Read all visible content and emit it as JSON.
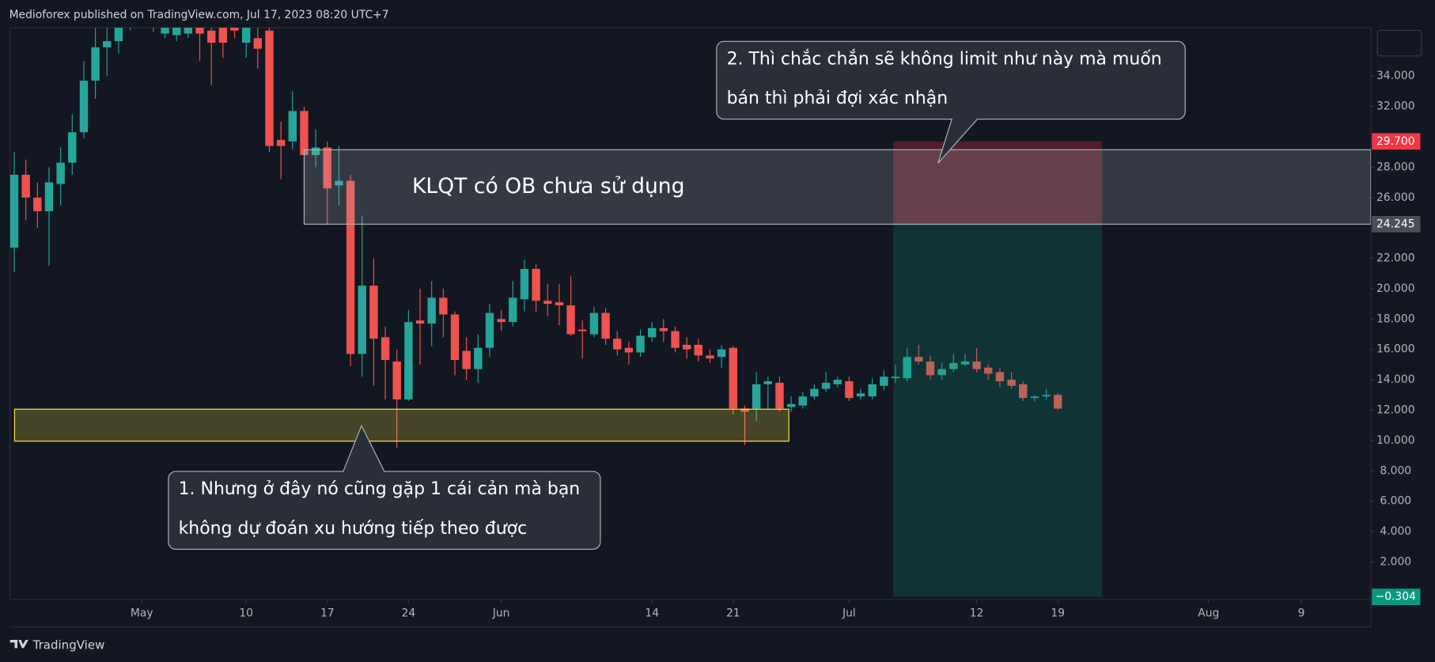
{
  "header": "Medioforex published on TradingView.com, Jul 17, 2023 08:20 UTC+7",
  "footer": "TradingView",
  "chart_data": {
    "type": "candlestick",
    "series": [
      {
        "up_color": "#26a69a",
        "down_color": "#ef5350",
        "open": [
          22.7,
          27.5,
          26.0,
          25.1,
          26.9,
          28.3,
          30.3,
          33.7,
          35.9,
          36.3,
          37.5,
          38.0,
          37.8,
          36.8,
          36.7,
          36.8,
          37.5,
          37.0,
          37.3,
          37.2,
          36.2,
          36.5,
          37.0,
          29.8,
          29.7,
          31.7,
          28.8,
          29.3,
          26.8,
          27.1,
          15.7,
          20.2,
          16.8,
          15.2,
          12.7,
          17.9,
          17.7,
          19.4,
          18.3,
          15.9,
          14.7,
          16.1,
          18.0,
          17.8,
          19.3,
          21.3,
          19.2,
          19.1,
          18.9,
          17.3,
          17.0,
          18.4,
          16.7,
          16.1,
          15.8,
          16.8,
          17.4,
          17.2,
          16.3,
          16.3,
          15.6,
          15.5,
          16.1,
          12.1,
          12.1,
          13.7,
          13.8,
          12.2,
          12.3,
          12.9,
          13.4,
          13.7,
          13.9,
          12.9,
          12.9,
          13.6,
          14.1,
          14.1,
          15.5,
          15.2,
          14.3,
          14.7,
          15.0,
          15.2,
          14.8,
          14.5,
          14.0,
          13.7,
          12.8,
          12.9,
          13.0
        ],
        "high": [
          29.0,
          28.5,
          27.0,
          28.0,
          29.3,
          31.5,
          35.0,
          37.2,
          37.2,
          37.2,
          38.5,
          39.0,
          38.5,
          38.0,
          37.8,
          38.0,
          38.0,
          37.5,
          37.8,
          37.5,
          37.8,
          37.5,
          37.5,
          31.0,
          33.0,
          32.0,
          30.5,
          29.7,
          29.4,
          27.5,
          24.8,
          22.0,
          17.5,
          16.0,
          18.6,
          20.0,
          20.5,
          20.0,
          18.5,
          16.8,
          17.0,
          19.0,
          18.6,
          20.5,
          21.9,
          21.6,
          20.3,
          20.3,
          20.8,
          17.9,
          18.8,
          18.7,
          17.2,
          16.5,
          17.3,
          17.8,
          18.0,
          17.5,
          16.8,
          16.7,
          16.0,
          16.3,
          16.2,
          12.3,
          14.5,
          14.2,
          14.2,
          12.9,
          13.2,
          13.7,
          14.5,
          14.2,
          14.2,
          13.4,
          14.1,
          14.6,
          15.0,
          16.1,
          16.3,
          15.6,
          15.1,
          15.7,
          15.7,
          16.1,
          15.0,
          14.8,
          14.5,
          13.9,
          13.0,
          13.4,
          13.1
        ],
        "low": [
          21.1,
          24.5,
          24.0,
          21.5,
          25.5,
          27.5,
          29.9,
          32.5,
          34.0,
          35.5,
          37.0,
          37.5,
          36.9,
          36.5,
          36.3,
          36.5,
          35.0,
          33.4,
          35.2,
          36.5,
          35.2,
          34.5,
          29.0,
          27.2,
          29.2,
          26.5,
          28.0,
          24.2,
          25.5,
          14.9,
          14.2,
          13.6,
          12.7,
          9.5,
          12.6,
          15.0,
          16.2,
          16.8,
          14.3,
          14.0,
          13.8,
          15.5,
          17.2,
          17.5,
          18.5,
          18.5,
          18.2,
          17.6,
          16.9,
          15.4,
          16.8,
          16.3,
          15.6,
          15.0,
          15.5,
          16.5,
          16.5,
          15.8,
          15.4,
          15.2,
          15.1,
          14.8,
          11.7,
          9.7,
          11.3,
          12.0,
          11.9,
          11.9,
          12.1,
          12.7,
          13.2,
          13.5,
          12.6,
          12.7,
          12.7,
          13.3,
          13.8,
          13.9,
          15.0,
          14.0,
          14.0,
          14.5,
          14.9,
          14.5,
          14.0,
          13.5,
          13.4,
          12.6,
          12.6,
          12.7,
          12.0
        ],
        "close": [
          27.5,
          26.0,
          25.1,
          27.0,
          28.3,
          30.3,
          33.7,
          35.9,
          36.3,
          37.2,
          38.0,
          38.3,
          37.4,
          37.5,
          37.4,
          37.5,
          36.8,
          36.2,
          36.2,
          37.0,
          37.2,
          35.8,
          29.4,
          29.4,
          31.7,
          28.8,
          29.3,
          26.6,
          27.1,
          15.7,
          20.2,
          16.7,
          15.3,
          12.7,
          17.8,
          17.7,
          19.4,
          18.3,
          15.3,
          14.7,
          16.1,
          18.4,
          17.8,
          19.4,
          21.3,
          19.2,
          19.0,
          18.9,
          17.0,
          17.2,
          18.4,
          16.7,
          16.0,
          15.8,
          16.9,
          17.4,
          17.2,
          16.1,
          16.0,
          15.6,
          15.4,
          16.0,
          12.1,
          11.9,
          13.7,
          13.9,
          12.1,
          12.4,
          12.9,
          13.4,
          13.8,
          14.0,
          12.8,
          13.1,
          13.7,
          14.2,
          14.2,
          15.5,
          15.2,
          14.3,
          14.7,
          15.1,
          15.2,
          14.7,
          14.4,
          13.9,
          13.6,
          12.8,
          12.9,
          13.0,
          12.1
        ]
      }
    ],
    "xlim": [
      -0.36,
      117.0
    ],
    "xticks": [
      {
        "value": 11,
        "label": "May"
      },
      {
        "value": 20,
        "label": "10"
      },
      {
        "value": 27,
        "label": "17"
      },
      {
        "value": 34,
        "label": "24"
      },
      {
        "value": 42,
        "label": "Jun"
      },
      {
        "value": 55,
        "label": "14"
      },
      {
        "value": 62,
        "label": "21"
      },
      {
        "value": 72,
        "label": "Jul"
      },
      {
        "value": 83,
        "label": "12"
      },
      {
        "value": 90,
        "label": "19"
      },
      {
        "value": 103,
        "label": "Aug"
      },
      {
        "value": 111,
        "label": "9"
      }
    ],
    "ylim": [
      -0.48,
      37.19
    ],
    "yticks": [
      {
        "value": 2,
        "label": "2.000"
      },
      {
        "value": 4,
        "label": "4.000"
      },
      {
        "value": 6,
        "label": "6.000"
      },
      {
        "value": 8,
        "label": "8.000"
      },
      {
        "value": 10,
        "label": "10.000"
      },
      {
        "value": 12,
        "label": "12.000"
      },
      {
        "value": 14,
        "label": "14.000"
      },
      {
        "value": 16,
        "label": "16.000"
      },
      {
        "value": 18,
        "label": "18.000"
      },
      {
        "value": 20,
        "label": "20.000"
      },
      {
        "value": 22,
        "label": "22.000"
      },
      {
        "value": 24,
        "label": "24.000"
      },
      {
        "value": 26,
        "label": "26.000"
      },
      {
        "value": 28,
        "label": "28.000"
      },
      {
        "value": 32,
        "label": "32.000"
      },
      {
        "value": 34,
        "label": "34.000"
      }
    ],
    "zones": [
      {
        "label": "KLQT có OB chưa sử dụng",
        "top": 29.15,
        "bottom": 24.245,
        "x": [
          25.0,
          117.0
        ],
        "color": "#b2b5be"
      },
      {
        "top": 12.06,
        "bottom": 9.95,
        "x": [
          0.03,
          66.8
        ],
        "color": "#ffeb3b"
      }
    ],
    "position": {
      "x": [
        75.8,
        93.8
      ],
      "stop": {
        "value": 29.7,
        "label": "29.700"
      },
      "entry": {
        "value": 24.245,
        "label": "24.245"
      },
      "target": {
        "value": -0.304,
        "label": "−0.304"
      }
    },
    "annotations": [
      {
        "lines": [
          "1. Nhưng ở đây nó cũng gặp 1 cái cản mà bạn",
          "không dự đoán xu hướng tiếp theo được"
        ]
      },
      {
        "lines": [
          "2. Thì chắc chắn sẽ không limit như này mà muốn",
          "bán thì phải đợi xác nhận"
        ]
      }
    ]
  }
}
